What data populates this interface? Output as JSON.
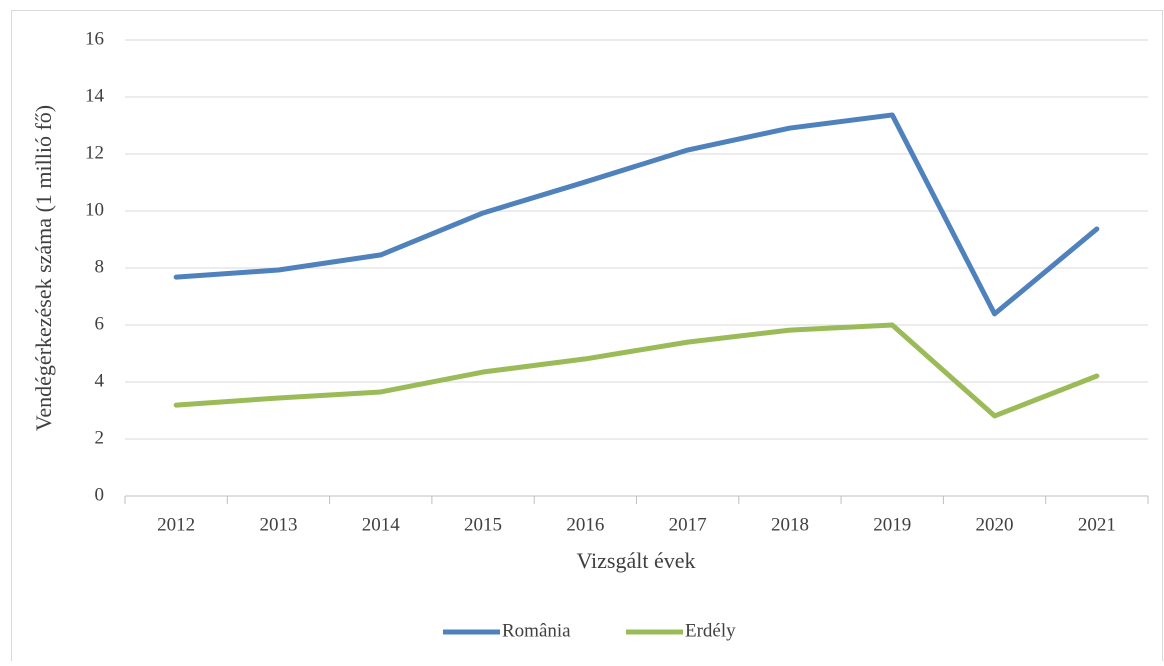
{
  "chart_data": {
    "type": "line",
    "y_label": "Vendégérkezések száma (1 millió fő)",
    "x_label": "Vizsgált évek",
    "categories": [
      "2012",
      "2013",
      "2014",
      "2015",
      "2016",
      "2017",
      "2018",
      "2019",
      "2020",
      "2021"
    ],
    "series": [
      {
        "name": "România",
        "color": "#4f81bd",
        "values": [
          7.68,
          7.93,
          8.46,
          9.93,
          11.02,
          12.14,
          12.91,
          13.37,
          6.39,
          9.37
        ]
      },
      {
        "name": "Erdély",
        "color": "#9bbb59",
        "values": [
          3.19,
          3.44,
          3.65,
          4.35,
          4.81,
          5.4,
          5.82,
          6.0,
          2.81,
          4.21
        ]
      }
    ],
    "ylim": [
      0,
      16
    ],
    "yticks": [
      0,
      2,
      4,
      6,
      8,
      10,
      12,
      14,
      16
    ],
    "grid": true,
    "legend": "bottom"
  }
}
